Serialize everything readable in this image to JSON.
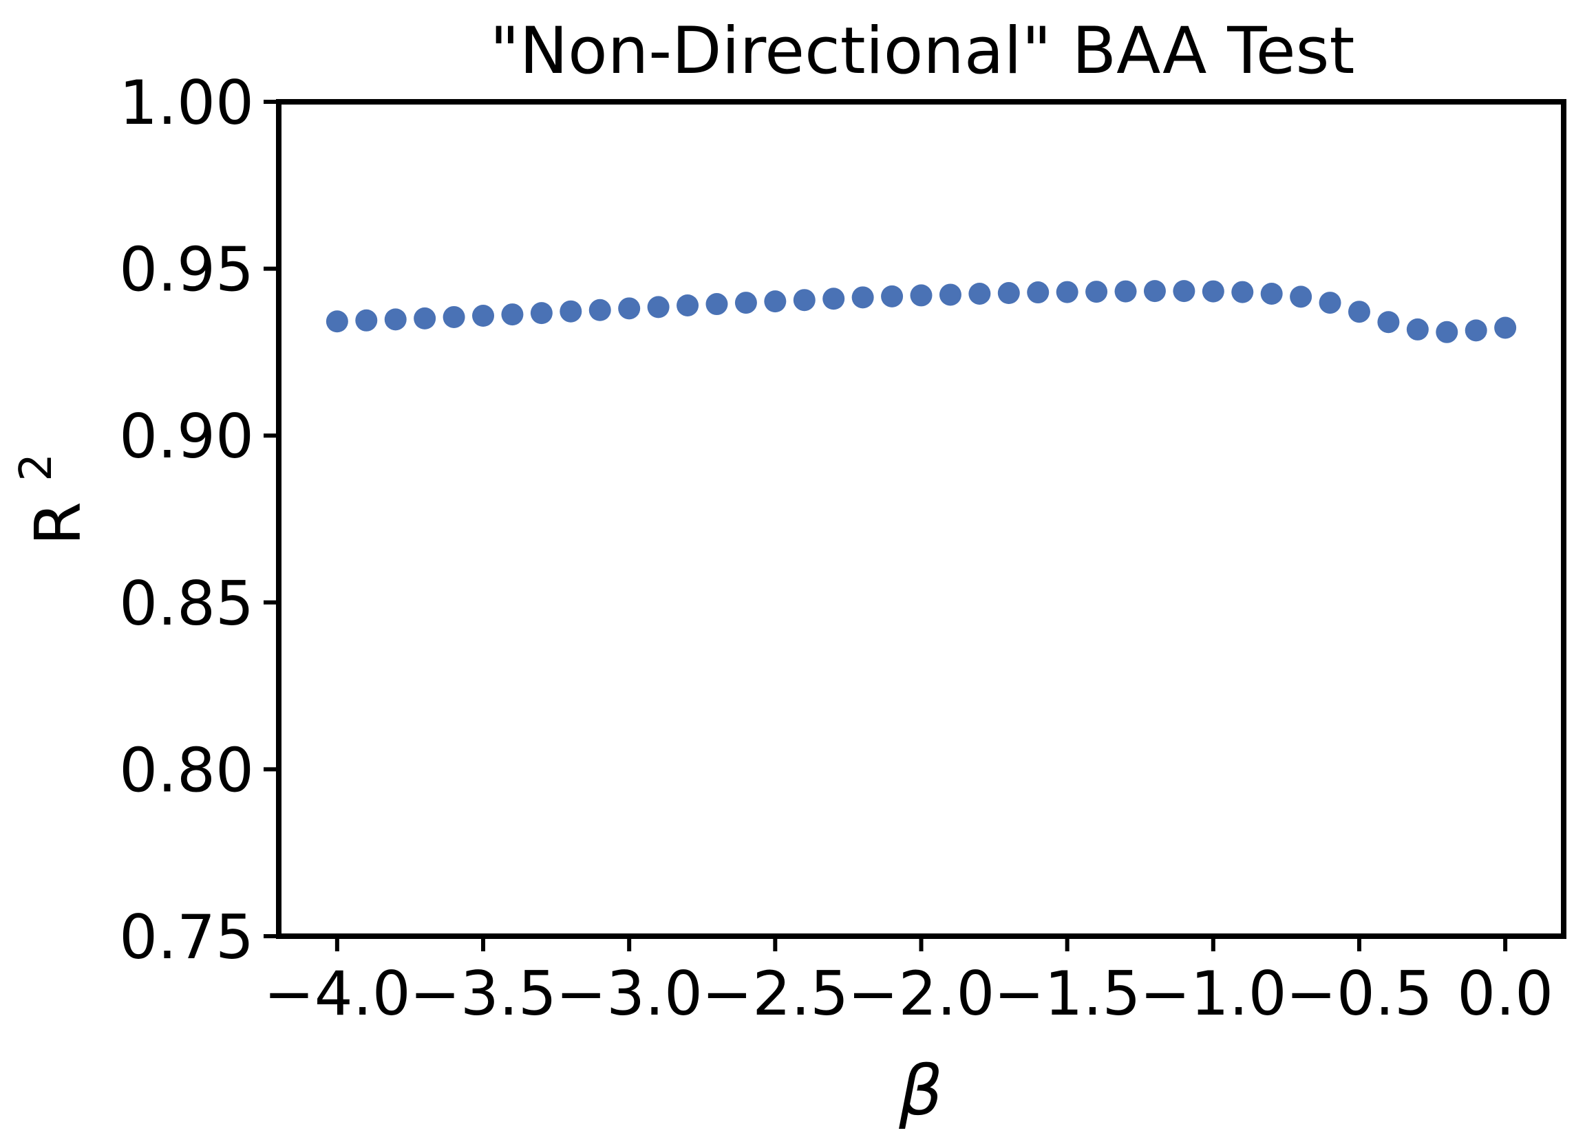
{
  "chart_data": {
    "type": "scatter",
    "title": "\"Non-Directional\" BAA Test",
    "xlabel": "β",
    "ylabel_base": "R",
    "ylabel_superscript": "2",
    "xlim": [
      -4.2,
      0.2
    ],
    "ylim": [
      0.75,
      1.0
    ],
    "x_ticks": [
      {
        "value": -4.0,
        "label": "−4.0"
      },
      {
        "value": -3.5,
        "label": "−3.5"
      },
      {
        "value": -3.0,
        "label": "−3.0"
      },
      {
        "value": -2.5,
        "label": "−2.5"
      },
      {
        "value": -2.0,
        "label": "−2.0"
      },
      {
        "value": -1.5,
        "label": "−1.5"
      },
      {
        "value": -1.0,
        "label": "−1.0"
      },
      {
        "value": -0.5,
        "label": "−0.5"
      },
      {
        "value": 0.0,
        "label": "0.0"
      }
    ],
    "y_ticks": [
      {
        "value": 0.75,
        "label": "0.75"
      },
      {
        "value": 0.8,
        "label": "0.80"
      },
      {
        "value": 0.85,
        "label": "0.85"
      },
      {
        "value": 0.9,
        "label": "0.90"
      },
      {
        "value": 0.95,
        "label": "0.95"
      },
      {
        "value": 1.0,
        "label": "1.00"
      }
    ],
    "grid": false,
    "point_color": "#4a72b5",
    "x": [
      -4.0,
      -3.9,
      -3.8,
      -3.7,
      -3.6,
      -3.5,
      -3.4,
      -3.3,
      -3.2,
      -3.1,
      -3.0,
      -2.9,
      -2.8,
      -2.7,
      -2.6,
      -2.5,
      -2.4,
      -2.3,
      -2.2,
      -2.1,
      -2.0,
      -1.9,
      -1.8,
      -1.7,
      -1.6,
      -1.5,
      -1.4,
      -1.3,
      -1.2,
      -1.1,
      -1.0,
      -0.9,
      -0.8,
      -0.7,
      -0.6,
      -0.5,
      -0.4,
      -0.3,
      -0.2,
      -0.1,
      0.0
    ],
    "y": [
      0.9342,
      0.9345,
      0.9348,
      0.9351,
      0.9355,
      0.9359,
      0.9363,
      0.9367,
      0.9372,
      0.9376,
      0.9381,
      0.9385,
      0.939,
      0.9394,
      0.9398,
      0.9402,
      0.9406,
      0.941,
      0.9414,
      0.9417,
      0.942,
      0.9422,
      0.9425,
      0.9427,
      0.9429,
      0.943,
      0.9431,
      0.9432,
      0.9433,
      0.9433,
      0.9432,
      0.943,
      0.9425,
      0.9416,
      0.9398,
      0.9371,
      0.934,
      0.9318,
      0.931,
      0.9315,
      0.9323
    ]
  }
}
